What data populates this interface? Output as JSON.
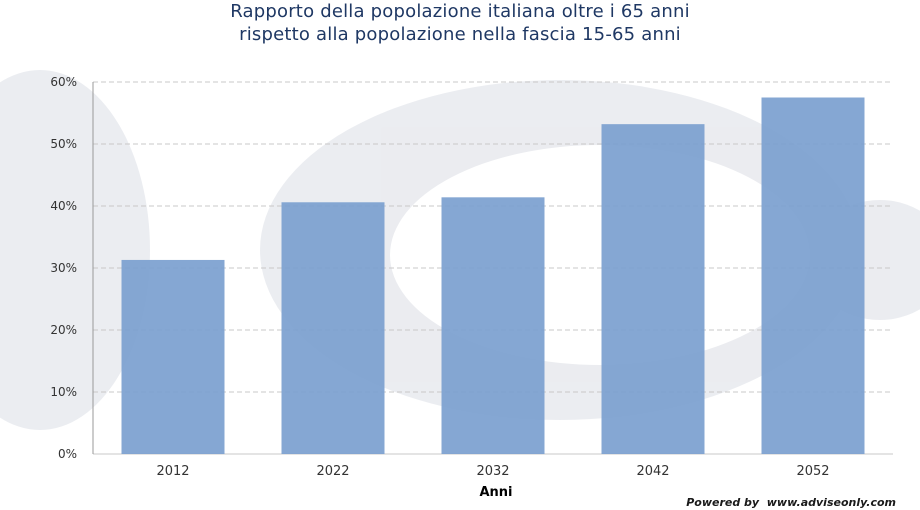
{
  "chart_data": {
    "type": "bar",
    "title_line1": "Rapporto della popolazione italiana oltre i 65 anni",
    "title_line2": "rispetto alla popolazione nella fascia 15-65 anni",
    "xlabel": "Anni",
    "ylabel": "",
    "categories": [
      "2012",
      "2022",
      "2032",
      "2042",
      "2052"
    ],
    "values": [
      31.3,
      40.6,
      41.4,
      53.2,
      57.5
    ],
    "unit": "%",
    "ylim": [
      0,
      60
    ],
    "yticks": [
      0,
      10,
      20,
      30,
      40,
      50,
      60
    ],
    "ytick_labels": [
      "0%",
      "10%",
      "20%",
      "30%",
      "40%",
      "50%",
      "60%"
    ],
    "grid": true,
    "bar_color": "#7b9fcf",
    "legend": "none"
  },
  "footer": {
    "credit": "Powered by  www.adviseonly.com"
  },
  "colors": {
    "title": "#1f3864",
    "grid": "#c8c8c8",
    "watermark": "#e9ebef"
  }
}
